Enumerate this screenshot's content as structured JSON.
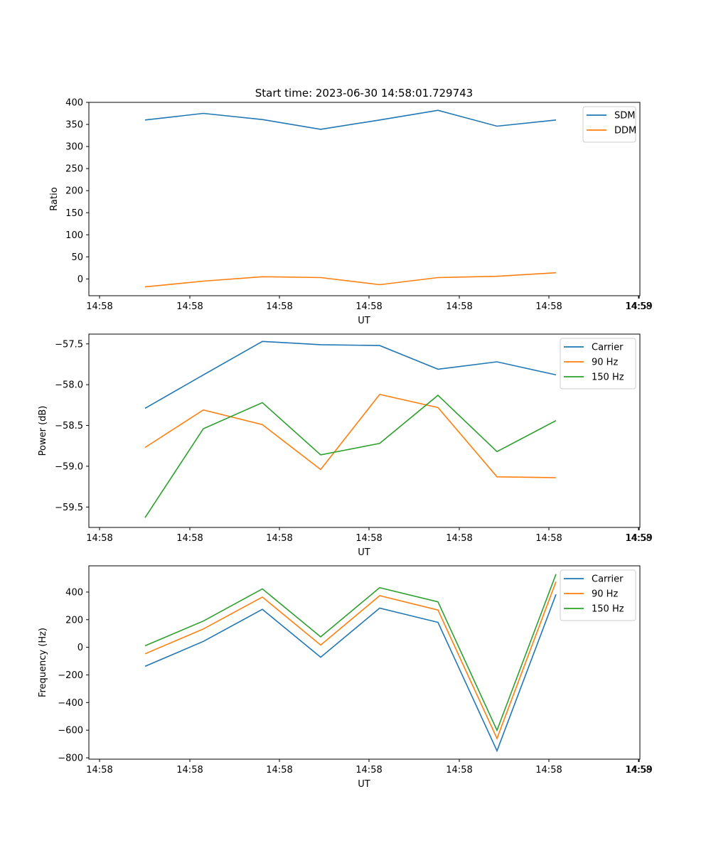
{
  "figure": {
    "title": "Start time: 2023-06-30 14:58:01.729743"
  },
  "chart_data": [
    {
      "type": "line",
      "ylabel": "Ratio",
      "xlabel": "UT",
      "x_tick_labels": [
        "14:58",
        "14:58",
        "14:58",
        "14:58",
        "14:58",
        "14:58",
        "14:58",
        "14:59"
      ],
      "ylim": [
        -38,
        400
      ],
      "y_ticks": [
        0,
        50,
        100,
        150,
        200,
        250,
        300,
        350,
        400
      ],
      "y_tick_labels": [
        "0",
        "50",
        "100",
        "150",
        "200",
        "250",
        "300",
        "350",
        "400"
      ],
      "legend": "top-right",
      "grid": false,
      "series": [
        {
          "name": "SDM",
          "color": "#1f77b4",
          "values": [
            360,
            375,
            361,
            339,
            360,
            382,
            346,
            360
          ]
        },
        {
          "name": "DDM",
          "color": "#ff7f0e",
          "values": [
            -18,
            -5,
            5,
            3,
            -13,
            3,
            6,
            14
          ]
        }
      ]
    },
    {
      "type": "line",
      "ylabel": "Power (dB)",
      "xlabel": "UT",
      "x_tick_labels": [
        "14:58",
        "14:58",
        "14:58",
        "14:58",
        "14:58",
        "14:58",
        "14:58",
        "14:59"
      ],
      "ylim": [
        -59.75,
        -57.38
      ],
      "y_ticks": [
        -59.5,
        -59.0,
        -58.5,
        -58.0,
        -57.5
      ],
      "y_tick_labels": [
        "−59.5",
        "−59.0",
        "−58.5",
        "−58.0",
        "−57.5"
      ],
      "legend": "top-right",
      "grid": false,
      "series": [
        {
          "name": "Carrier",
          "color": "#1f77b4",
          "values": [
            -58.29,
            -57.88,
            -57.47,
            -57.51,
            -57.52,
            -57.81,
            -57.72,
            -57.88
          ]
        },
        {
          "name": "90 Hz",
          "color": "#ff7f0e",
          "values": [
            -58.77,
            -58.31,
            -58.49,
            -59.04,
            -58.12,
            -58.28,
            -59.13,
            -59.14
          ]
        },
        {
          "name": "150 Hz",
          "color": "#2ca02c",
          "values": [
            -59.63,
            -58.54,
            -58.22,
            -58.86,
            -58.72,
            -58.13,
            -58.82,
            -58.44
          ]
        }
      ]
    },
    {
      "type": "line",
      "ylabel": "Frequency (Hz)",
      "xlabel": "UT",
      "x_tick_labels": [
        "14:58",
        "14:58",
        "14:58",
        "14:58",
        "14:58",
        "14:58",
        "14:58",
        "14:59"
      ],
      "ylim": [
        -810,
        590
      ],
      "y_ticks": [
        -800,
        -600,
        -400,
        -200,
        0,
        200,
        400
      ],
      "y_tick_labels": [
        "−800",
        "−600",
        "−400",
        "−200",
        "0",
        "200",
        "400"
      ],
      "legend": "top-right",
      "grid": false,
      "series": [
        {
          "name": "Carrier",
          "color": "#1f77b4",
          "values": [
            -138,
            43,
            275,
            -72,
            284,
            181,
            -750,
            383
          ]
        },
        {
          "name": "90 Hz",
          "color": "#ff7f0e",
          "values": [
            -47,
            133,
            364,
            16,
            374,
            270,
            -660,
            475
          ]
        },
        {
          "name": "150 Hz",
          "color": "#2ca02c",
          "values": [
            11,
            190,
            423,
            76,
            432,
            329,
            -601,
            530
          ]
        }
      ]
    }
  ]
}
